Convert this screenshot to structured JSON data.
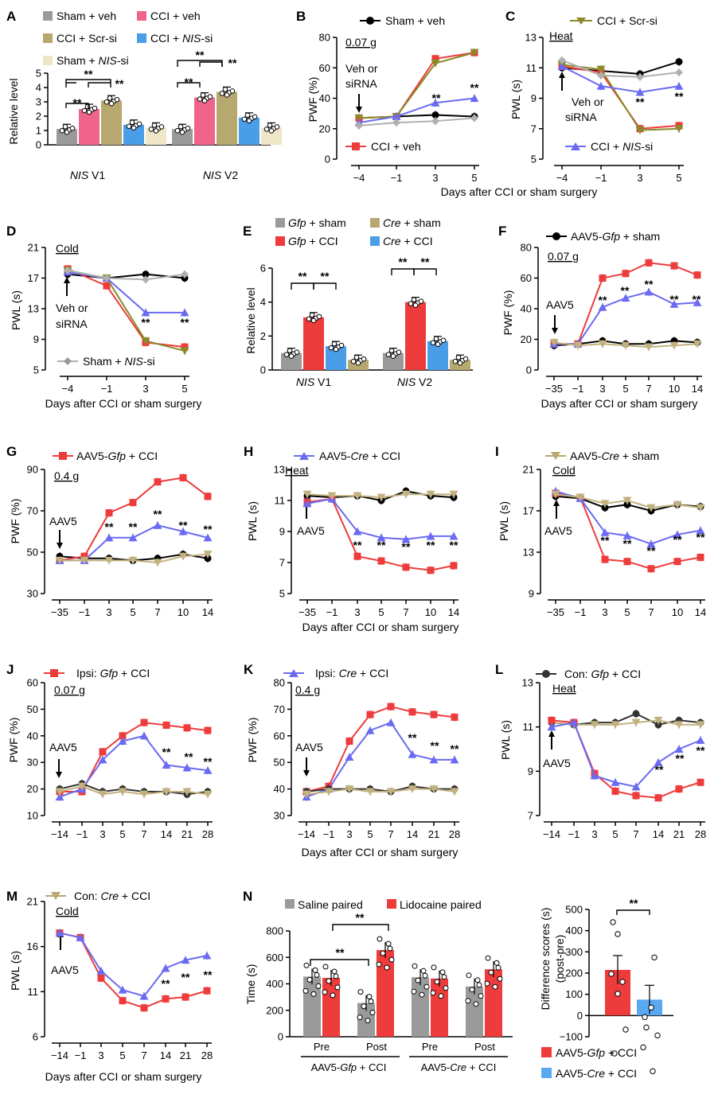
{
  "colors": {
    "sham_veh": "#9a9a9a",
    "cci_veh": "#f0648c",
    "cci_scr": "#b6a86e",
    "cci_nis": "#4a9ee8",
    "sham_nis": "#efe6c8",
    "black": "#000000",
    "red": "#ee3b3b",
    "olive": "#8a8a2a",
    "blue": "#6a6af2",
    "gray_line": "#b0b0b0",
    "tan": "#c2b280",
    "gfp_sham": "#9a9a9a",
    "gfp_cci": "#ee3b3b",
    "cre_sham": "#b6a86e",
    "cre_cci": "#4a9ee8"
  },
  "panels": {
    "A": {
      "letter": "A",
      "leg1": "Sham + veh",
      "leg2": "CCI + veh",
      "leg3": "CCI + Scr-si",
      "leg4a": "CCI + ",
      "leg4b": "NIS",
      "leg4c": "-si",
      "leg5a": "Sham + ",
      "leg5b": "NIS",
      "leg5c": "-si",
      "ylabel": "Relative level",
      "g1a": "NIS",
      "g1b": " V1",
      "g2a": "NIS",
      "g2b": " V2"
    },
    "B": {
      "letter": "B",
      "legA": "Sham + veh",
      "legB": "CCI + veh",
      "ylabel": "PWF (%)",
      "dose": "0.07 g",
      "arrow1": "Veh or",
      "arrow2": "siRNA"
    },
    "C": {
      "letter": "C",
      "legA": "CCI + Scr-si",
      "legB1": "CCI + ",
      "legB2": "NIS",
      "legB3": "-si",
      "ylabel": "PWL (s)",
      "stim": "Heat",
      "arrow1": "Veh or",
      "arrow2": "siRNA"
    },
    "BC_xlabel": "Days after CCI or sham surgery",
    "D": {
      "letter": "D",
      "legA1": "Sham + ",
      "legA2": "NIS",
      "legA3": "-si",
      "ylabel": "PWL (s)",
      "stim": "Cold",
      "arrow1": "Veh or",
      "arrow2": "siRNA",
      "xlabel": "Days after CCI or sham surgery"
    },
    "E": {
      "letter": "E",
      "leg1a": "Gfp",
      "leg1b": " + sham",
      "leg2a": "Gfp",
      "leg2b": " + CCI",
      "leg3a": "Cre",
      "leg3b": " + sham",
      "leg4a": "Cre",
      "leg4b": " + CCI",
      "ylabel": "Relative level",
      "g1a": "NIS",
      "g1b": " V1",
      "g2a": "NIS",
      "g2b": " V2"
    },
    "F": {
      "letter": "F",
      "legA1": "AAV5-",
      "legA2": "Gfp",
      "legA3": " + sham",
      "ylabel": "PWF (%)",
      "dose": "0.07 g",
      "arrow1": "AAV5",
      "xlabel": "Days after CCI or sham surgery"
    },
    "G": {
      "letter": "G",
      "legA1": "AAV5-",
      "legA2": "Gfp",
      "legA3": " + CCI",
      "ylabel": "PWF (%)",
      "dose": "0.4 g",
      "arrow1": "AAV5"
    },
    "H": {
      "letter": "H",
      "legA1": "AAV5-",
      "legA2": "Cre",
      "legA3": " + CCI",
      "ylabel": "PWL (s)",
      "stim": "Heat",
      "arrow1": "AAV5"
    },
    "I": {
      "letter": "I",
      "legA1": "AAV5-",
      "legA2": "Cre",
      "legA3": " + sham",
      "ylabel": "PWL (s)",
      "stim": "Cold",
      "arrow1": "AAV5"
    },
    "GHI_xlabel": "Days after CCI or sham surgery",
    "J": {
      "letter": "J",
      "legA1": "Ipsi: ",
      "legA2": "Gfp",
      "legA3": " + CCI",
      "ylabel": "PWF (%)",
      "dose": "0.07 g",
      "arrow1": "AAV5"
    },
    "K": {
      "letter": "K",
      "legA1": "Ipsi: ",
      "legA2": "Cre",
      "legA3": " + CCI",
      "ylabel": "PWF (%)",
      "dose": "0.4 g",
      "arrow1": "AAV5"
    },
    "L": {
      "letter": "L",
      "legA1": "Con: ",
      "legA2": "Gfp",
      "legA3": " + CCI",
      "ylabel": "PWL (s)",
      "stim": "Heat",
      "arrow1": "AAV5"
    },
    "JKL_xlabel": "Days after CCI or sham surgery",
    "M": {
      "letter": "M",
      "legA1": "Con: ",
      "legA2": "Cre",
      "legA3": " + CCI",
      "ylabel": "PWL (s)",
      "stim": "Cold",
      "arrow1": "AAV5",
      "xlabel": "Days after CCI or sham surgery"
    },
    "N": {
      "letter": "N",
      "leg1": "Saline paired",
      "leg2": "Lidocaine paired",
      "ylabel": "Time (s)",
      "pre": "Pre",
      "post": "Post",
      "grp1a": "AAV5-",
      "grp1b": "Gfp",
      "grp1c": " + CCI",
      "grp2a": "AAV5-",
      "grp2b": "Cre",
      "grp2c": " + CCI",
      "ylabel2a": "Difference scores (s)",
      "ylabel2b": "(post-pre)",
      "legR1a": "AAV5-",
      "legR1b": "Gfp",
      "legR1c": " + CCI",
      "legR2a": "AAV5-",
      "legR2b": "Cre",
      "legR2c": " + CCI"
    },
    "sig": "**"
  },
  "chart_data": [
    {
      "panel": "A",
      "type": "bar",
      "ylabel": "Relative level",
      "ylim": [
        0,
        5
      ],
      "categories": [
        "NIS V1",
        "NIS V2"
      ],
      "series": [
        {
          "name": "Sham + veh",
          "values": [
            1.1,
            1.1
          ]
        },
        {
          "name": "CCI + veh",
          "values": [
            2.5,
            3.3
          ]
        },
        {
          "name": "CCI + Scr-si",
          "values": [
            3.1,
            3.7
          ]
        },
        {
          "name": "CCI + NIS-si",
          "values": [
            1.4,
            1.9
          ]
        },
        {
          "name": "Sham + NIS-si",
          "values": [
            1.2,
            1.2
          ]
        }
      ]
    },
    {
      "panel": "B",
      "type": "line",
      "ylabel": "PWF (%)",
      "ylim": [
        0,
        80
      ],
      "xticks": [
        "-4",
        "-1",
        "3",
        "5"
      ],
      "series": [
        {
          "name": "Sham + veh",
          "values": [
            27,
            28,
            29,
            28
          ]
        },
        {
          "name": "CCI + veh",
          "values": [
            27,
            28,
            66,
            70
          ]
        },
        {
          "name": "CCI + Scr-si",
          "values": [
            27,
            28,
            63,
            70
          ]
        },
        {
          "name": "CCI + NIS-si",
          "values": [
            24,
            28,
            37,
            40
          ]
        },
        {
          "name": "Sham + NIS-si",
          "values": [
            22,
            24,
            25,
            27
          ]
        }
      ]
    },
    {
      "panel": "C",
      "type": "line",
      "ylabel": "PWL (s)",
      "ylim": [
        5,
        13
      ],
      "xticks": [
        "-4",
        "-1",
        "3",
        "5"
      ],
      "series": [
        {
          "name": "Sham + veh",
          "values": [
            11.0,
            10.8,
            10.6,
            11.4
          ]
        },
        {
          "name": "CCI + veh",
          "values": [
            11.1,
            10.7,
            7.0,
            7.2
          ]
        },
        {
          "name": "CCI + Scr-si",
          "values": [
            11.2,
            10.9,
            6.9,
            7.0
          ]
        },
        {
          "name": "CCI + NIS-si",
          "values": [
            11.1,
            9.8,
            9.4,
            9.8
          ]
        },
        {
          "name": "Sham + NIS-si",
          "values": [
            11.5,
            10.5,
            10.4,
            10.7
          ]
        }
      ]
    },
    {
      "panel": "D",
      "type": "line",
      "ylabel": "PWL (s)",
      "ylim": [
        5,
        21
      ],
      "xticks": [
        "-4",
        "-1",
        "3",
        "5"
      ],
      "series": [
        {
          "name": "Sham + veh",
          "values": [
            17.5,
            17.0,
            17.5,
            17.0
          ]
        },
        {
          "name": "CCI + veh",
          "values": [
            18.2,
            16.0,
            8.6,
            8.0
          ]
        },
        {
          "name": "CCI + Scr-si",
          "values": [
            18.0,
            17.0,
            8.8,
            7.5
          ]
        },
        {
          "name": "CCI + NIS-si",
          "values": [
            17.8,
            17.0,
            12.5,
            12.5
          ]
        },
        {
          "name": "Sham + NIS-si",
          "values": [
            18.0,
            17.0,
            16.8,
            17.5
          ]
        }
      ]
    },
    {
      "panel": "E",
      "type": "bar",
      "ylabel": "Relative level",
      "ylim": [
        0,
        6
      ],
      "categories": [
        "NIS V1",
        "NIS V2"
      ],
      "series": [
        {
          "name": "Gfp + sham",
          "values": [
            1.0,
            1.0
          ]
        },
        {
          "name": "Gfp + CCI",
          "values": [
            3.1,
            4.0
          ]
        },
        {
          "name": "Cre + CCI",
          "values": [
            1.4,
            1.7
          ]
        },
        {
          "name": "Cre + sham",
          "values": [
            0.6,
            0.6
          ]
        }
      ]
    },
    {
      "panel": "F",
      "type": "line",
      "ylabel": "PWF (%)",
      "ylim": [
        0,
        80
      ],
      "xticks": [
        "-35",
        "-1",
        "3",
        "5",
        "7",
        "10",
        "14"
      ],
      "series": [
        {
          "name": "AAV5-Gfp + sham",
          "values": [
            16,
            17,
            19,
            17,
            17,
            19,
            18
          ]
        },
        {
          "name": "AAV5-Gfp + CCI",
          "values": [
            17,
            17,
            60,
            63,
            70,
            68,
            62
          ]
        },
        {
          "name": "AAV5-Cre + CCI",
          "values": [
            17,
            17,
            41,
            47,
            51,
            43,
            44
          ]
        },
        {
          "name": "AAV5-Cre + sham",
          "values": [
            18,
            16,
            17,
            16,
            15,
            16,
            17
          ]
        }
      ]
    },
    {
      "panel": "G",
      "type": "line",
      "ylabel": "PWF (%)",
      "ylim": [
        30,
        90
      ],
      "xticks": [
        "-35",
        "-1",
        "3",
        "5",
        "7",
        "10",
        "14"
      ],
      "series": [
        {
          "name": "AAV5-Gfp + sham",
          "values": [
            48,
            47,
            47,
            46,
            47,
            49,
            47
          ]
        },
        {
          "name": "AAV5-Gfp + CCI",
          "values": [
            46,
            48,
            69,
            74,
            84,
            86,
            77
          ]
        },
        {
          "name": "AAV5-Cre + CCI",
          "values": [
            46,
            46,
            57,
            57,
            63,
            60,
            57
          ]
        },
        {
          "name": "AAV5-Cre + sham",
          "values": [
            46,
            46,
            46,
            46,
            45,
            48,
            49
          ]
        }
      ]
    },
    {
      "panel": "H",
      "type": "line",
      "ylabel": "PWL (s)",
      "ylim": [
        5,
        13
      ],
      "xticks": [
        "-35",
        "-1",
        "3",
        "5",
        "7",
        "10",
        "14"
      ],
      "series": [
        {
          "name": "AAV5-Gfp + sham",
          "values": [
            11.3,
            11.2,
            11.3,
            11.0,
            11.6,
            11.3,
            11.2
          ]
        },
        {
          "name": "AAV5-Gfp + CCI",
          "values": [
            10.9,
            11.1,
            7.4,
            7.1,
            6.7,
            6.5,
            6.8
          ]
        },
        {
          "name": "AAV5-Cre + CCI",
          "values": [
            10.8,
            11.1,
            9.0,
            8.6,
            8.5,
            8.7,
            8.7
          ]
        },
        {
          "name": "AAV5-Cre + sham",
          "values": [
            11.4,
            11.3,
            11.3,
            11.2,
            11.4,
            11.4,
            11.4
          ]
        }
      ]
    },
    {
      "panel": "I",
      "type": "line",
      "ylabel": "PWL (s)",
      "ylim": [
        9,
        21
      ],
      "xticks": [
        "-35",
        "-1",
        "3",
        "5",
        "7",
        "10",
        "14"
      ],
      "series": [
        {
          "name": "AAV5-Gfp + sham",
          "values": [
            18.4,
            18.2,
            17.3,
            17.6,
            17.0,
            17.6,
            17.4
          ]
        },
        {
          "name": "AAV5-Gfp + CCI",
          "values": [
            18.7,
            18.3,
            12.3,
            12.1,
            11.4,
            12.1,
            12.5
          ]
        },
        {
          "name": "AAV5-Cre + CCI",
          "values": [
            18.9,
            18.2,
            14.9,
            14.6,
            13.8,
            14.7,
            15.1
          ]
        },
        {
          "name": "AAV5-Cre + sham",
          "values": [
            18.6,
            18.3,
            17.7,
            18.0,
            17.3,
            17.6,
            17.3
          ]
        }
      ]
    },
    {
      "panel": "J",
      "type": "line",
      "ylabel": "PWF (%)",
      "ylim": [
        10,
        60
      ],
      "xticks": [
        "-14",
        "-1",
        "3",
        "5",
        "7",
        "14",
        "21",
        "28"
      ],
      "series": [
        {
          "name": "Ipsi: Gfp + CCI",
          "values": [
            19,
            19,
            34,
            40,
            45,
            44,
            43,
            42
          ]
        },
        {
          "name": "Ipsi: Cre + CCI",
          "values": [
            17,
            20,
            31,
            38,
            40,
            29,
            28,
            27
          ]
        },
        {
          "name": "Con: Gfp + CCI",
          "values": [
            20,
            22,
            19,
            20,
            19,
            19,
            18,
            19
          ]
        },
        {
          "name": "Con: Cre + CCI",
          "values": [
            19,
            21,
            18,
            19,
            18,
            19,
            19,
            18
          ]
        }
      ]
    },
    {
      "panel": "K",
      "type": "line",
      "ylabel": "PWF (%)",
      "ylim": [
        30,
        80
      ],
      "xticks": [
        "-14",
        "-1",
        "3",
        "5",
        "7",
        "14",
        "21",
        "28"
      ],
      "series": [
        {
          "name": "Ipsi: Gfp + CCI",
          "values": [
            39,
            41,
            58,
            68,
            71,
            69,
            68,
            67
          ]
        },
        {
          "name": "Ipsi: Cre + CCI",
          "values": [
            37,
            40,
            52,
            62,
            65,
            53,
            51,
            51
          ]
        },
        {
          "name": "Con: Gfp + CCI",
          "values": [
            39,
            40,
            40,
            40,
            39,
            41,
            40,
            40
          ]
        },
        {
          "name": "Con: Cre + CCI",
          "values": [
            38,
            39,
            40,
            39,
            39,
            40,
            40,
            39
          ]
        }
      ]
    },
    {
      "panel": "L",
      "type": "line",
      "ylabel": "PWL (s)",
      "ylim": [
        7,
        13
      ],
      "xticks": [
        "-14",
        "-1",
        "3",
        "5",
        "7",
        "14",
        "21",
        "28"
      ],
      "series": [
        {
          "name": "Con: Gfp + CCI",
          "values": [
            11.2,
            11.1,
            11.2,
            11.2,
            11.6,
            11.1,
            11.3,
            11.2
          ]
        },
        {
          "name": "Con: Cre + CCI",
          "values": [
            11.2,
            11.1,
            11.1,
            11.1,
            11.2,
            11.3,
            11.1,
            11.1
          ]
        },
        {
          "name": "Ipsi: Gfp + CCI",
          "values": [
            11.3,
            11.2,
            8.9,
            8.1,
            7.9,
            7.8,
            8.2,
            8.5
          ]
        },
        {
          "name": "Ipsi: Cre + CCI",
          "values": [
            11.0,
            11.2,
            8.8,
            8.5,
            8.3,
            9.4,
            10.0,
            10.4
          ]
        }
      ]
    },
    {
      "panel": "M",
      "type": "line",
      "ylabel": "PWL (s)",
      "ylim": [
        6,
        21
      ],
      "xticks": [
        "-14",
        "-1",
        "3",
        "5",
        "7",
        "14",
        "21",
        "28"
      ],
      "series": [
        {
          "name": "Ipsi: Gfp + CCI",
          "values": [
            17.5,
            17.0,
            12.5,
            10.0,
            9.2,
            10.2,
            10.4,
            11.1
          ]
        },
        {
          "name": "Ipsi: Cre + CCI",
          "values": [
            17.5,
            17.0,
            13.3,
            11.2,
            10.5,
            13.6,
            14.5,
            15.0
          ]
        }
      ]
    },
    {
      "panel": "N-left",
      "type": "bar",
      "ylabel": "Time (s)",
      "ylim": [
        0,
        800
      ],
      "categories": [
        "AAV5-Gfp + CCI Pre",
        "AAV5-Gfp + CCI Post",
        "AAV5-Cre + CCI Pre",
        "AAV5-Cre + CCI Post"
      ],
      "series": [
        {
          "name": "Saline paired",
          "values": [
            455,
            255,
            450,
            380
          ]
        },
        {
          "name": "Lidocaine paired",
          "values": [
            445,
            655,
            440,
            510
          ]
        }
      ]
    },
    {
      "panel": "N-right",
      "type": "bar",
      "ylabel": "Difference scores (s) (post-pre)",
      "ylim": [
        -100,
        500
      ],
      "categories": [
        "AAV5-Gfp + CCI",
        "AAV5-Cre + CCI"
      ],
      "values": [
        215,
        75
      ]
    }
  ]
}
